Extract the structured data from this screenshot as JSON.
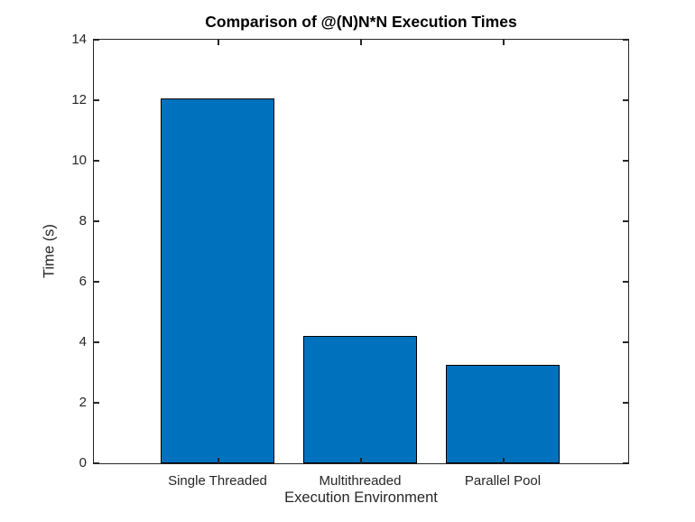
{
  "chart_data": {
    "type": "bar",
    "title": "Comparison of @(N)N*N Execution Times",
    "xlabel": "Execution Environment",
    "ylabel": "Time (s)",
    "categories": [
      "Single Threaded",
      "Multithreaded",
      "Parallel Pool"
    ],
    "values": [
      12.05,
      4.22,
      3.27
    ],
    "ylim": [
      0,
      14
    ],
    "yticks": [
      0,
      2,
      4,
      6,
      8,
      10,
      12,
      14
    ],
    "grid": "off",
    "legend": "none",
    "bar_color": "#0072BD",
    "bar_edge_color": "#000000",
    "axis_color": "#262626",
    "title_color": "#000000",
    "background_color": "#FFFFFF"
  }
}
